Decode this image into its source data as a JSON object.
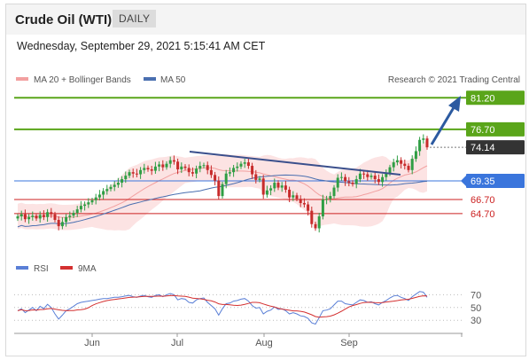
{
  "header": {
    "title": "Crude Oil (WTI)",
    "timeframe": "DAILY",
    "datetime": "Wednesday, September 29, 2021 5:15:41 AM CET"
  },
  "legend": {
    "ma20": "MA 20 + Bollinger Bands",
    "ma50": "MA 50",
    "credit": "Research © 2021 Trading Central",
    "rsi": "RSI",
    "ma9": "9MA"
  },
  "colors": {
    "resistance": "#5aa51a",
    "support": "#3a75dc",
    "target_red": "#cc2222",
    "current_dark": "#333333",
    "ma50": "#4a6fb0",
    "bollinger": "#f2a0a0",
    "trendline": "#3a4f8c",
    "arrow": "#2c5aa0",
    "rsi": "#5a7fd6",
    "rsi_ma": "#d43030"
  },
  "chart_data": {
    "type": "candlestick",
    "x_labels": [
      "Jun",
      "Jul",
      "Aug",
      "Sep"
    ],
    "levels": [
      {
        "value": 81.2,
        "label": "81.20",
        "kind": "resistance"
      },
      {
        "value": 76.7,
        "label": "76.70",
        "kind": "resistance"
      },
      {
        "value": 74.14,
        "label": "74.14",
        "kind": "last-price"
      },
      {
        "value": 69.35,
        "label": "69.35",
        "kind": "pivot"
      },
      {
        "value": 66.7,
        "label": "66.70",
        "kind": "support"
      },
      {
        "value": 64.7,
        "label": "64.70",
        "kind": "support"
      }
    ],
    "ylim": [
      59.5,
      82.5
    ],
    "rsi_ticks": [
      70,
      50,
      30
    ],
    "rsi_ylim": [
      15,
      90
    ],
    "closes": [
      64.3,
      64.6,
      63.9,
      64.2,
      64.4,
      64.0,
      64.5,
      64.2,
      64.9,
      64.6,
      63.8,
      62.9,
      63.5,
      64.2,
      64.4,
      64.8,
      65.3,
      65.8,
      66.0,
      66.3,
      66.6,
      67.0,
      67.4,
      67.9,
      68.2,
      68.5,
      68.8,
      69.1,
      69.6,
      70.1,
      70.6,
      70.4,
      70.3,
      70.9,
      71.2,
      71.0,
      70.8,
      71.4,
      71.7,
      71.3,
      71.8,
      72.3,
      72.1,
      71.0,
      71.4,
      71.2,
      70.6,
      70.4,
      71.1,
      71.5,
      71.6,
      70.9,
      70.2,
      69.4,
      67.2,
      68.9,
      70.4,
      70.6,
      71.2,
      71.4,
      71.8,
      72.0,
      71.5,
      70.3,
      69.5,
      69.7,
      67.4,
      68.0,
      68.3,
      69.1,
      68.4,
      68.7,
      68.1,
      67.0,
      67.3,
      66.8,
      66.2,
      66.0,
      65.1,
      63.2,
      62.6,
      64.3,
      66.7,
      66.8,
      67.2,
      68.4,
      69.8,
      69.9,
      69.3,
      69.1,
      68.9,
      69.6,
      70.4,
      70.3,
      69.9,
      70.1,
      69.6,
      69.2,
      69.9,
      70.4,
      71.3,
      72.0,
      72.3,
      71.8,
      71.5,
      70.9,
      72.5,
      73.6,
      75.2,
      75.4,
      74.14
    ],
    "rsi": [
      45,
      48,
      42,
      46,
      50,
      45,
      52,
      48,
      55,
      50,
      40,
      32,
      38,
      45,
      48,
      52,
      56,
      58,
      59,
      60,
      61,
      62,
      63,
      64,
      64,
      65,
      66,
      66,
      67,
      68,
      69,
      67,
      66,
      68,
      69,
      67,
      66,
      69,
      70,
      67,
      70,
      72,
      70,
      62,
      64,
      63,
      58,
      57,
      62,
      64,
      65,
      58,
      53,
      48,
      38,
      48,
      56,
      57,
      60,
      61,
      63,
      64,
      60,
      53,
      49,
      50,
      40,
      44,
      46,
      51,
      47,
      48,
      45,
      40,
      42,
      40,
      37,
      36,
      33,
      26,
      24,
      34,
      45,
      46,
      48,
      54,
      60,
      60,
      56,
      55,
      54,
      58,
      62,
      61,
      58,
      59,
      56,
      54,
      58,
      61,
      65,
      68,
      69,
      66,
      64,
      61,
      67,
      71,
      75,
      74,
      66
    ]
  },
  "projection_label": "target 81.20"
}
